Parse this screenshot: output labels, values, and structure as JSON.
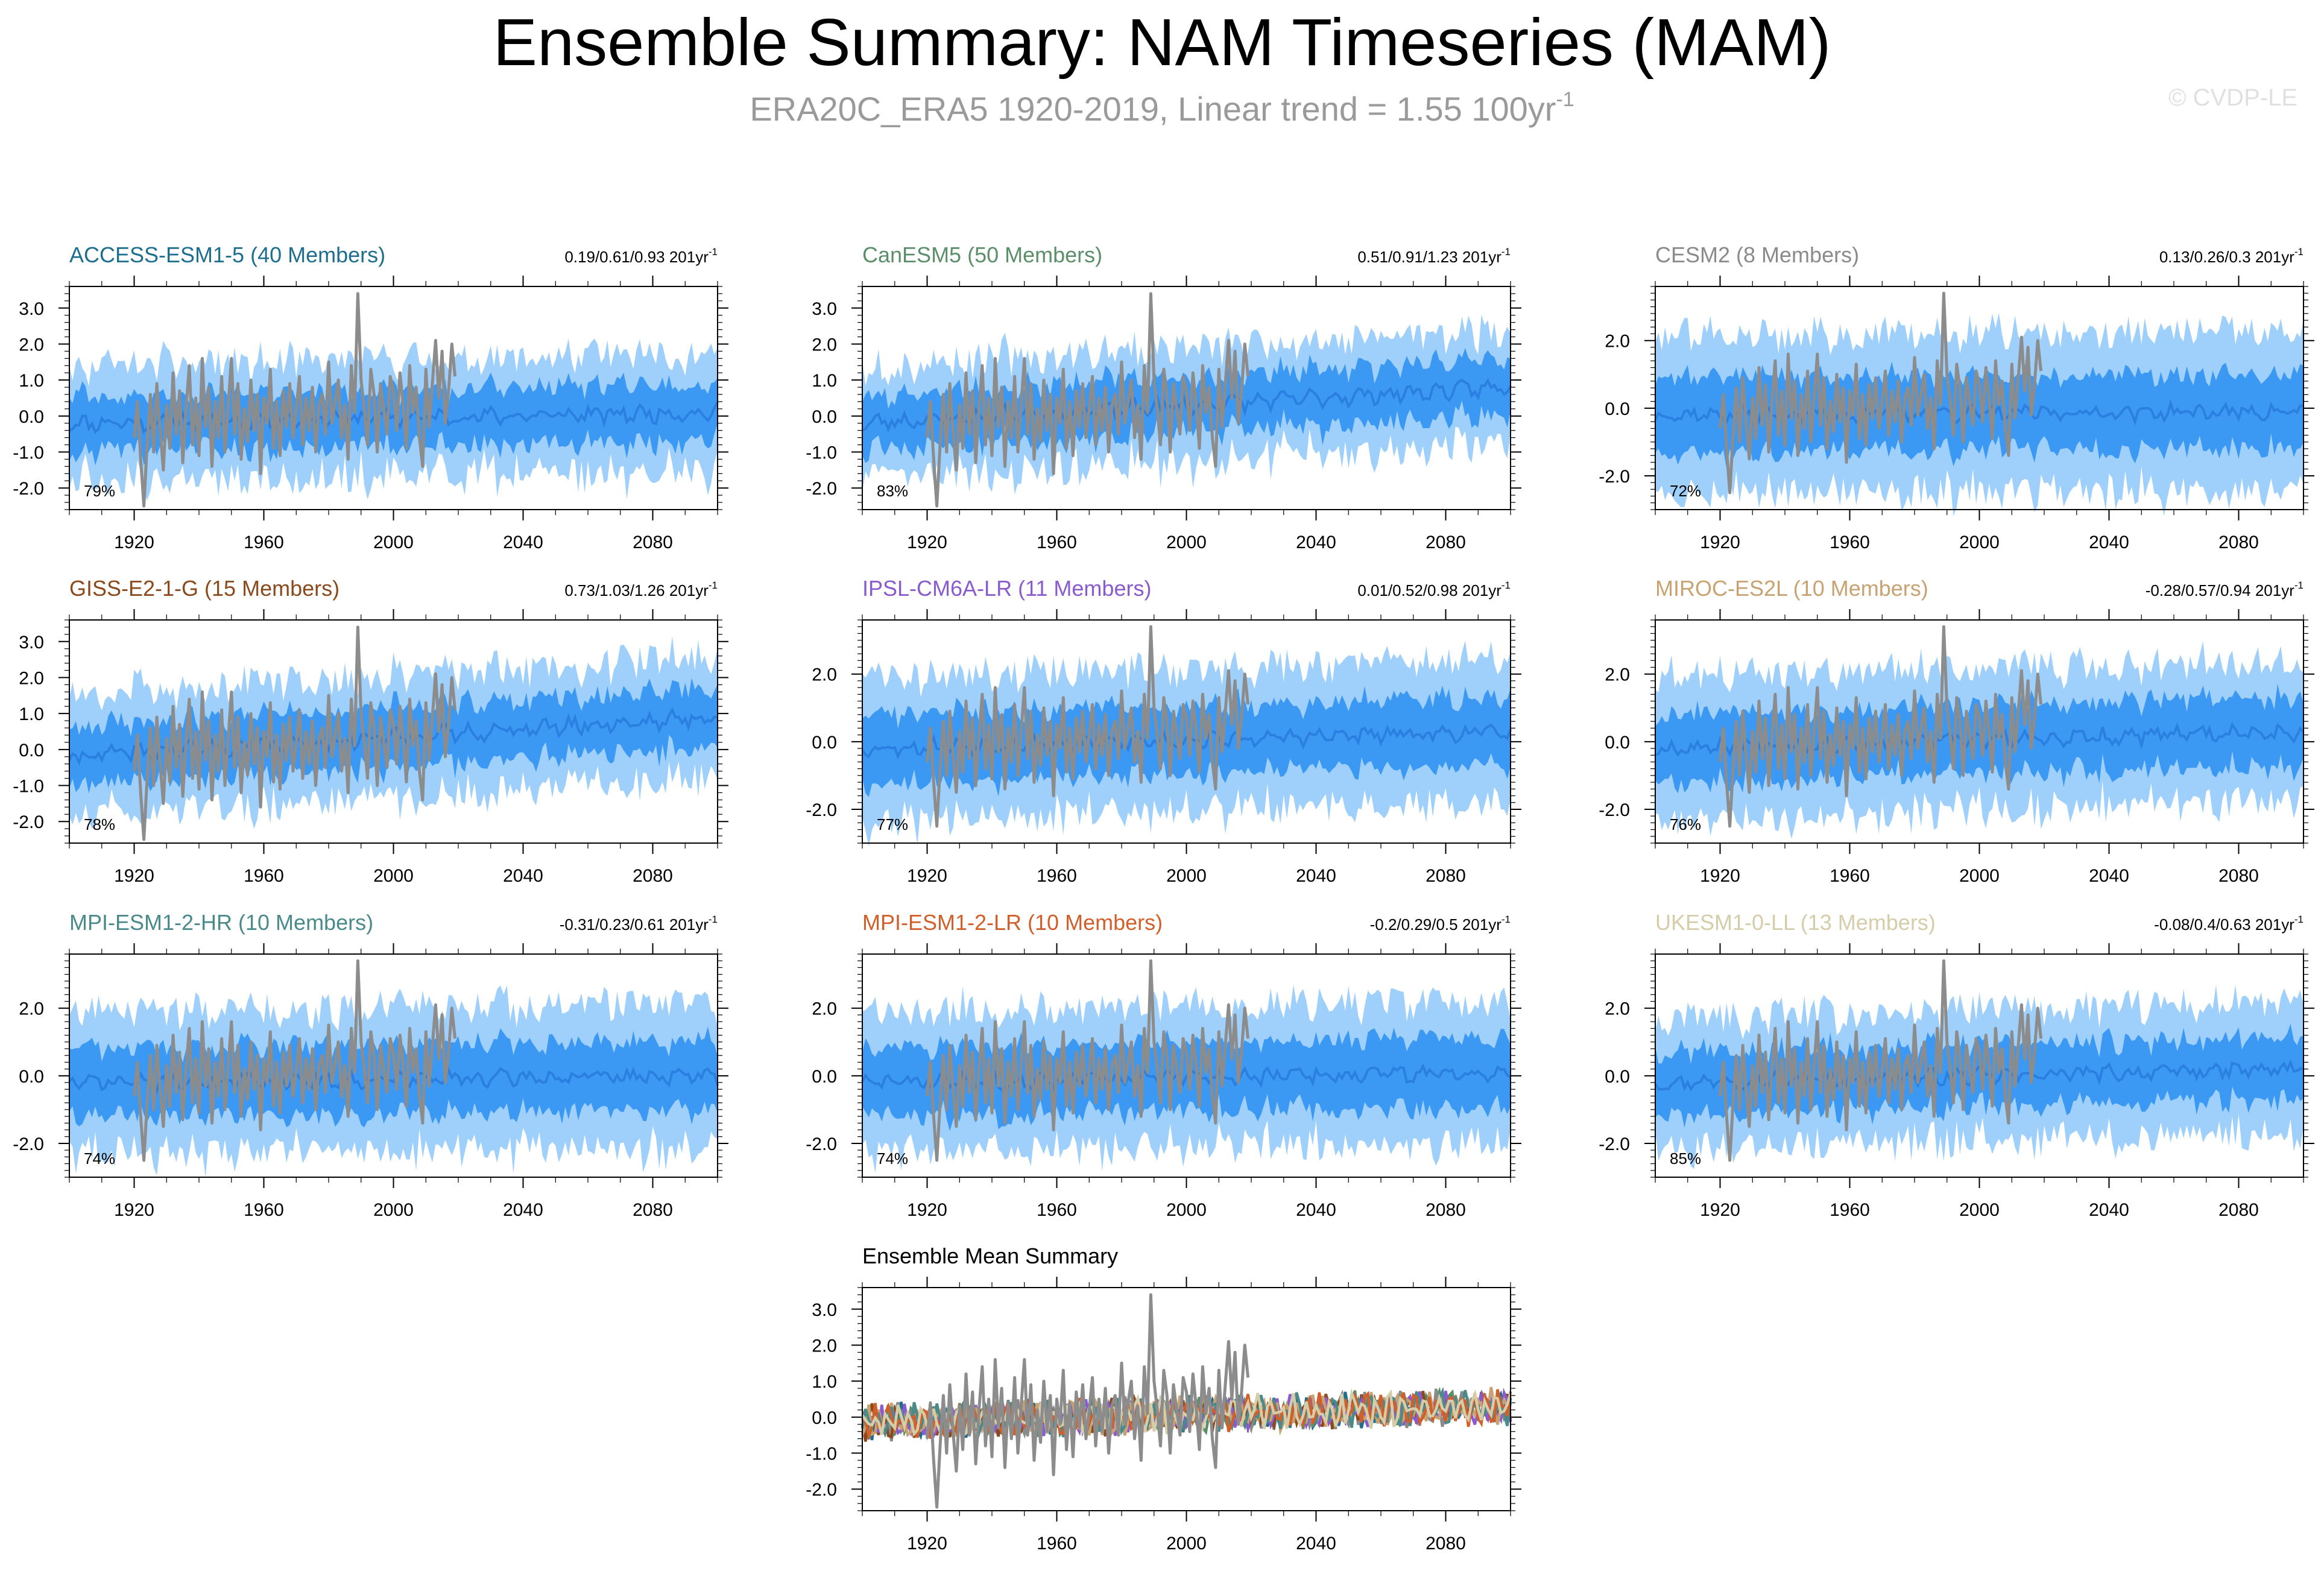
{
  "title": "Ensemble Summary: NAM Timeseries (MAM)",
  "subtitle": "ERA20C_ERA5 1920-2019, Linear trend = 1.55 100yr",
  "subtitle_exp": "-1",
  "watermark": "© CVDP-LE",
  "colors": {
    "outer_band": "#9fd0fb",
    "inner_band": "#3c99f3",
    "mean_line": "#2a7fe0",
    "obs_line": "#8c8c8c"
  },
  "chart_data": [
    {
      "type": "line",
      "title": "ACCESS-ESM1-5 (40 Members)",
      "title_color": "#1d6e8f",
      "stats": "0.19/0.61/0.93 201yr",
      "stats_exp": "-1",
      "pct": "79%",
      "ylim": [
        -2.6,
        3.6
      ],
      "yticks": [
        "3.0",
        "2.0",
        "1.0",
        "0.0",
        "-1.0",
        "-2.0"
      ],
      "ytick_values": [
        3,
        2,
        1,
        0,
        -1,
        -2
      ],
      "xticks": [
        "1920",
        "1960",
        "2000",
        "2040",
        "2080"
      ],
      "xlim": [
        1900,
        2100
      ],
      "trend": 0.3,
      "spread": 0.55,
      "seed": 11
    },
    {
      "type": "line",
      "title": "CanESM5 (50 Members)",
      "title_color": "#5a8f6a",
      "stats": "0.51/0.91/1.23 201yr",
      "stats_exp": "-1",
      "pct": "83%",
      "ylim": [
        -2.6,
        3.6
      ],
      "yticks": [
        "3.0",
        "2.0",
        "1.0",
        "0.0",
        "-1.0",
        "-2.0"
      ],
      "ytick_values": [
        3,
        2,
        1,
        0,
        -1,
        -2
      ],
      "xticks": [
        "1920",
        "1960",
        "2000",
        "2040",
        "2080"
      ],
      "xlim": [
        1900,
        2100
      ],
      "trend": 1.0,
      "spread": 0.55,
      "seed": 23
    },
    {
      "type": "line",
      "title": "CESM2 (8 Members)",
      "title_color": "#8a8a8a",
      "stats": "0.13/0.26/0.3 201yr",
      "stats_exp": "-1",
      "pct": "72%",
      "ylim": [
        -3.0,
        3.6
      ],
      "yticks": [
        "2.0",
        "0.0",
        "-2.0"
      ],
      "ytick_values": [
        2,
        0,
        -2
      ],
      "xticks": [
        "1920",
        "1960",
        "2000",
        "2040",
        "2080"
      ],
      "xlim": [
        1900,
        2100
      ],
      "trend": 0.1,
      "spread": 0.9,
      "seed": 37
    },
    {
      "type": "line",
      "title": "GISS-E2-1-G (15 Members)",
      "title_color": "#8a4a1c",
      "stats": "0.73/1.03/1.26 201yr",
      "stats_exp": "-1",
      "pct": "78%",
      "ylim": [
        -2.6,
        3.6
      ],
      "yticks": [
        "3.0",
        "2.0",
        "1.0",
        "0.0",
        "-1.0",
        "-2.0"
      ],
      "ytick_values": [
        3,
        2,
        1,
        0,
        -1,
        -2
      ],
      "xticks": [
        "1920",
        "1960",
        "2000",
        "2040",
        "2080"
      ],
      "xlim": [
        1900,
        2100
      ],
      "trend": 1.1,
      "spread": 0.6,
      "seed": 41
    },
    {
      "type": "line",
      "title": "IPSL-CM6A-LR (11 Members)",
      "title_color": "#8a5ad0",
      "stats": "0.01/0.52/0.98 201yr",
      "stats_exp": "-1",
      "pct": "77%",
      "ylim": [
        -3.0,
        3.6
      ],
      "yticks": [
        "2.0",
        "0.0",
        "-2.0"
      ],
      "ytick_values": [
        2,
        0,
        -2
      ],
      "xticks": [
        "1920",
        "1960",
        "2000",
        "2040",
        "2080"
      ],
      "xlim": [
        1900,
        2100
      ],
      "trend": 0.5,
      "spread": 0.8,
      "seed": 53
    },
    {
      "type": "line",
      "title": "MIROC-ES2L (10 Members)",
      "title_color": "#c9a272",
      "stats": "-0.28/0.57/0.94 201yr",
      "stats_exp": "-1",
      "pct": "76%",
      "ylim": [
        -3.0,
        3.6
      ],
      "yticks": [
        "2.0",
        "0.0",
        "-2.0"
      ],
      "ytick_values": [
        2,
        0,
        -2
      ],
      "xticks": [
        "1920",
        "1960",
        "2000",
        "2040",
        "2080"
      ],
      "xlim": [
        1900,
        2100
      ],
      "trend": 0.5,
      "spread": 0.8,
      "seed": 67
    },
    {
      "type": "line",
      "title": "MPI-ESM1-2-HR (10 Members)",
      "title_color": "#4a8a8a",
      "stats": "-0.31/0.23/0.61 201yr",
      "stats_exp": "-1",
      "pct": "74%",
      "ylim": [
        -3.0,
        3.6
      ],
      "yticks": [
        "2.0",
        "0.0",
        "-2.0"
      ],
      "ytick_values": [
        2,
        0,
        -2
      ],
      "xticks": [
        "1920",
        "1960",
        "2000",
        "2040",
        "2080"
      ],
      "xlim": [
        1900,
        2100
      ],
      "trend": 0.2,
      "spread": 0.8,
      "seed": 71
    },
    {
      "type": "line",
      "title": "MPI-ESM1-2-LR (10 Members)",
      "title_color": "#d25f2a",
      "stats": "-0.2/0.29/0.5 201yr",
      "stats_exp": "-1",
      "pct": "74%",
      "ylim": [
        -3.0,
        3.6
      ],
      "yticks": [
        "2.0",
        "0.0",
        "-2.0"
      ],
      "ytick_values": [
        2,
        0,
        -2
      ],
      "xticks": [
        "1920",
        "1960",
        "2000",
        "2040",
        "2080"
      ],
      "xlim": [
        1900,
        2100
      ],
      "trend": 0.3,
      "spread": 0.8,
      "seed": 83
    },
    {
      "type": "line",
      "title": "UKESM1-0-LL (13 Members)",
      "title_color": "#d5ccaa",
      "stats": "-0.08/0.4/0.63 201yr",
      "stats_exp": "-1",
      "pct": "85%",
      "ylim": [
        -3.0,
        3.6
      ],
      "yticks": [
        "2.0",
        "0.0",
        "-2.0"
      ],
      "ytick_values": [
        2,
        0,
        -2
      ],
      "xticks": [
        "1920",
        "1960",
        "2000",
        "2040",
        "2080"
      ],
      "xlim": [
        1900,
        2100
      ],
      "trend": 0.4,
      "spread": 0.7,
      "seed": 97
    }
  ],
  "summary_chart": {
    "type": "line",
    "title": "Ensemble Mean Summary",
    "title_color": "#000000",
    "ylim": [
      -2.6,
      3.6
    ],
    "yticks": [
      "3.0",
      "2.0",
      "1.0",
      "0.0",
      "-1.0",
      "-2.0"
    ],
    "ytick_values": [
      3,
      2,
      1,
      0,
      -1,
      -2
    ],
    "xticks": [
      "1920",
      "1960",
      "2000",
      "2040",
      "2080"
    ],
    "xlim": [
      1900,
      2100
    ],
    "series_colors": [
      "#1d6e8f",
      "#5a8f6a",
      "#8a8a8a",
      "#8a4a1c",
      "#8a5ad0",
      "#c9a272",
      "#4a8a8a",
      "#d25f2a",
      "#d5ccaa"
    ]
  },
  "observations": {
    "name": "ERA20C_ERA5",
    "years": [
      1920,
      1921,
      1922,
      1923,
      1924,
      1925,
      1926,
      1927,
      1928,
      1929,
      1930,
      1931,
      1932,
      1933,
      1934,
      1935,
      1936,
      1937,
      1938,
      1939,
      1940,
      1941,
      1942,
      1943,
      1944,
      1945,
      1946,
      1947,
      1948,
      1949,
      1950,
      1951,
      1952,
      1953,
      1954,
      1955,
      1956,
      1957,
      1958,
      1959,
      1960,
      1961,
      1962,
      1963,
      1964,
      1965,
      1966,
      1967,
      1968,
      1969,
      1970,
      1971,
      1972,
      1973,
      1974,
      1975,
      1976,
      1977,
      1978,
      1979,
      1980,
      1981,
      1982,
      1983,
      1984,
      1985,
      1986,
      1987,
      1988,
      1989,
      1990,
      1991,
      1992,
      1993,
      1994,
      1995,
      1996,
      1997,
      1998,
      1999,
      2000,
      2001,
      2002,
      2003,
      2004,
      2005,
      2006,
      2007,
      2008,
      2009,
      2010,
      2011,
      2012,
      2013,
      2014,
      2015,
      2016,
      2017,
      2018,
      2019
    ],
    "values": [
      -0.6,
      0.4,
      -1.2,
      -2.5,
      -0.8,
      0.6,
      -1.0,
      0.9,
      -0.4,
      -1.5,
      0.3,
      -0.9,
      1.2,
      -0.5,
      0.7,
      -1.3,
      0.2,
      1.4,
      -0.8,
      0.5,
      -1.1,
      1.6,
      -0.3,
      0.8,
      -1.4,
      0.4,
      -0.6,
      1.1,
      -1.0,
      0.3,
      1.6,
      -0.5,
      0.9,
      -1.2,
      0.2,
      -0.7,
      1.0,
      -0.4,
      0.6,
      -1.6,
      0.5,
      -0.2,
      1.3,
      -0.9,
      0.4,
      -1.1,
      0.7,
      -0.3,
      0.9,
      -0.6,
      0.2,
      1.1,
      -0.8,
      0.5,
      -0.4,
      0.8,
      -1.0,
      0.3,
      0.6,
      -0.5,
      1.5,
      -0.2,
      0.4,
      1.0,
      -0.6,
      0.3,
      -1.2,
      1.4,
      0.1,
      3.4,
      1.0,
      0.2,
      -0.8,
      1.3,
      0.6,
      -1.0,
      0.9,
      0.2,
      -0.5,
      1.1,
      0.7,
      -0.4,
      1.2,
      0.3,
      -0.9,
      1.4,
      0.1,
      0.8,
      -0.6,
      -1.4,
      1.3,
      -0.3,
      0.9,
      2.1,
      0.5,
      1.8,
      -0.2,
      0.7,
      2.0,
      1.1
    ]
  }
}
